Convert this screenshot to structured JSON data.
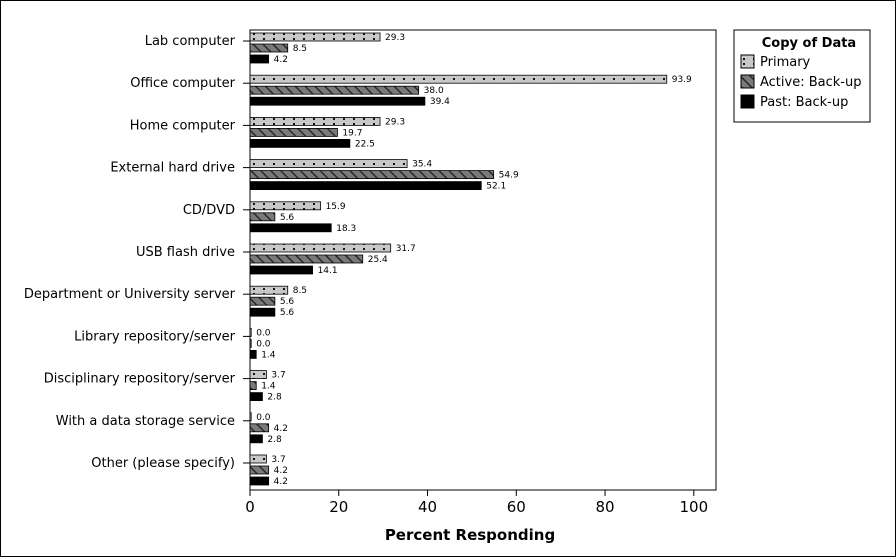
{
  "chart_data": {
    "type": "bar",
    "orientation": "horizontal",
    "title": "",
    "xlabel": "Percent Responding",
    "ylabel": "",
    "xlim": [
      0,
      105
    ],
    "x_ticks": [
      0,
      20,
      40,
      60,
      80,
      100
    ],
    "grid": false,
    "legend_position": "top-right",
    "legend_title": "Copy of Data",
    "categories": [
      "Lab computer",
      "Office computer",
      "Home computer",
      "External hard drive",
      "CD/DVD",
      "USB flash drive",
      "Department or University server",
      "Library repository/server",
      "Disciplinary repository/server",
      "With a data storage service",
      "Other (please specify)"
    ],
    "series": [
      {
        "name": "Primary",
        "pattern": "dots",
        "fill": "#c8c8c8",
        "values": [
          29.3,
          93.9,
          29.3,
          35.4,
          15.9,
          31.7,
          8.5,
          0.0,
          3.7,
          0.0,
          3.7
        ]
      },
      {
        "name": "Active: Back-up",
        "pattern": "hatch",
        "fill": "#707070",
        "values": [
          8.5,
          38.0,
          19.7,
          54.9,
          5.6,
          25.4,
          5.6,
          0.0,
          1.4,
          4.2,
          4.2
        ]
      },
      {
        "name": "Past: Back-up",
        "pattern": "solid",
        "fill": "#000000",
        "values": [
          4.2,
          39.4,
          22.5,
          52.1,
          18.3,
          14.1,
          5.6,
          1.4,
          2.8,
          2.8,
          4.2
        ]
      }
    ],
    "value_labels": [
      [
        "29.3",
        "93.9",
        "29.3",
        "35.4",
        "15.9",
        "31.7",
        "8.5",
        "0.0",
        "3.7",
        "0.0",
        "3.7"
      ],
      [
        "8.5",
        "38.0",
        "19.7",
        "54.9",
        "5.6",
        "25.4",
        "5.6",
        "0.0",
        "1.4",
        "4.2",
        "4.2"
      ],
      [
        "4.2",
        "39.4",
        "22.5",
        "52.1",
        "18.3",
        "14.1",
        "5.6",
        "1.4",
        "2.8",
        "2.8",
        "4.2"
      ]
    ]
  }
}
